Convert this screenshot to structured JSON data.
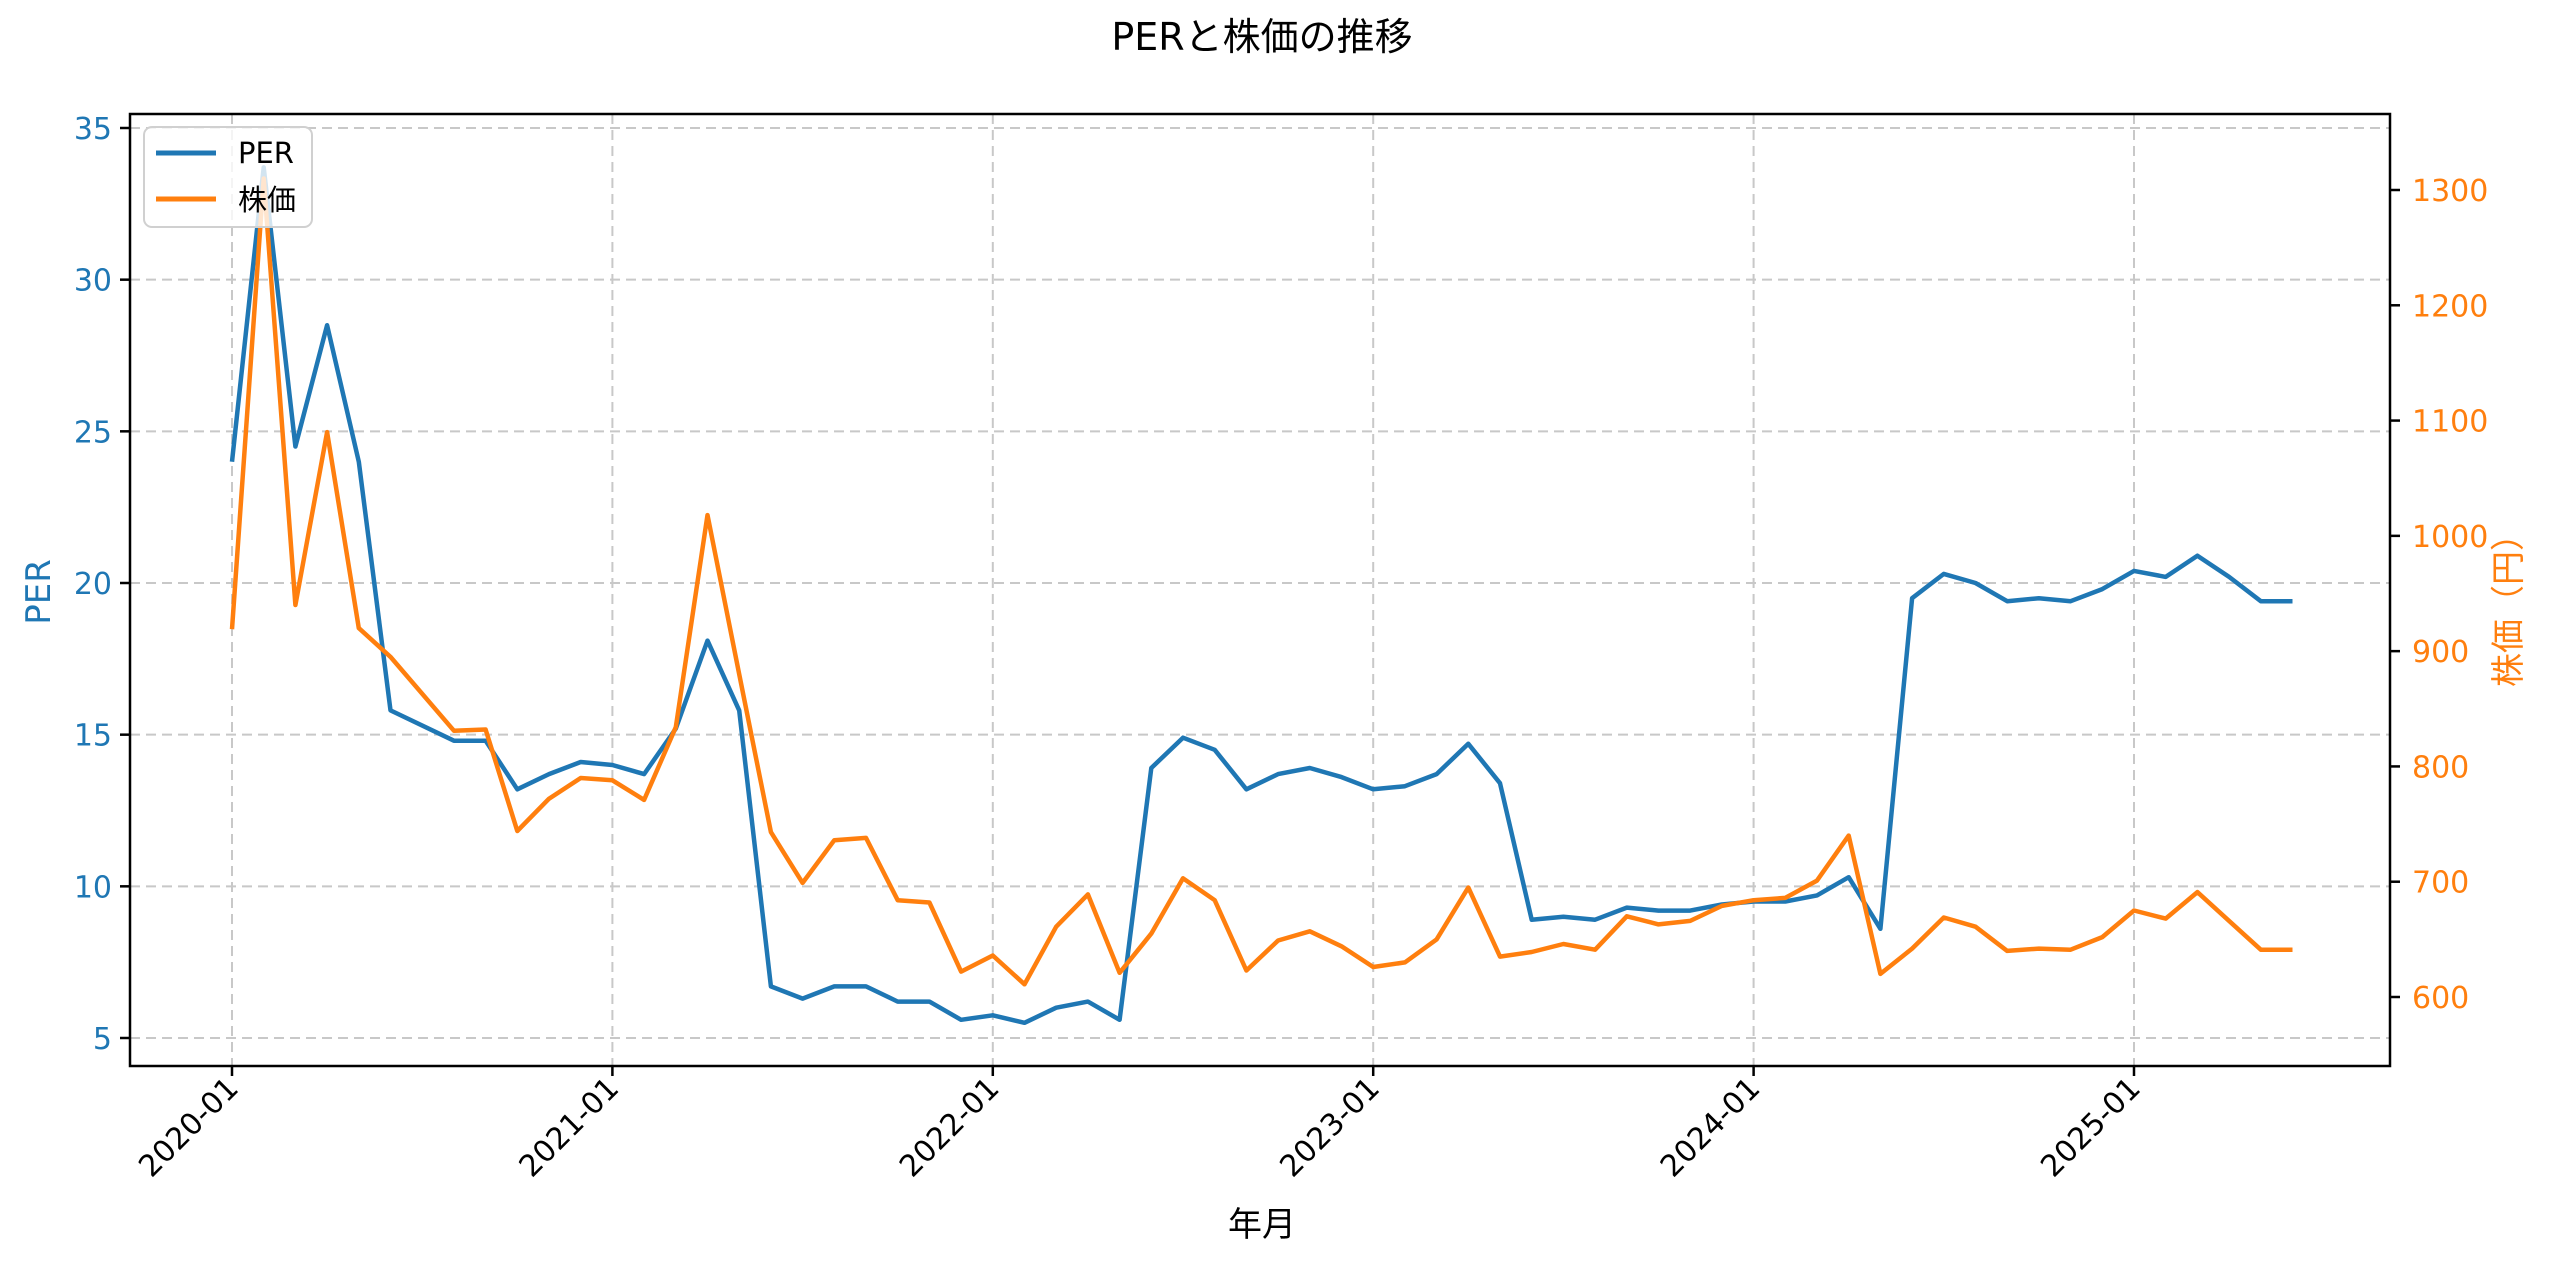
{
  "chart_data": {
    "type": "line",
    "title": "PERと株価の推移",
    "xlabel": "年月",
    "ylabel_left": "PER",
    "ylabel_right": "株価（円）",
    "ylim_left": [
      4.1,
      35.7
    ],
    "ylim_right": [
      540,
      1370
    ],
    "yticks_left": [
      5,
      10,
      15,
      20,
      25,
      30,
      35
    ],
    "yticks_right": [
      600,
      700,
      800,
      900,
      1000,
      1100,
      1200,
      1300
    ],
    "xticks": [
      "2020-01",
      "2021-01",
      "2022-01",
      "2023-01",
      "2024-01",
      "2025-01"
    ],
    "grid": true,
    "legend_position": "upper left",
    "x": [
      "2020-01",
      "2020-02",
      "2020-03",
      "2020-04",
      "2020-05",
      "2020-06",
      "2020-08",
      "2020-09",
      "2020-10",
      "2020-11",
      "2020-12",
      "2021-01",
      "2021-02",
      "2021-03",
      "2021-04",
      "2021-05",
      "2021-06",
      "2021-07",
      "2021-08",
      "2021-09",
      "2021-10",
      "2021-11",
      "2021-12",
      "2022-01",
      "2022-02",
      "2022-03",
      "2022-04",
      "2022-05",
      "2022-06",
      "2022-07",
      "2022-08",
      "2022-09",
      "2022-10",
      "2022-11",
      "2022-12",
      "2023-01",
      "2023-02",
      "2023-03",
      "2023-04",
      "2023-05",
      "2023-06",
      "2023-07",
      "2023-08",
      "2023-09",
      "2023-10",
      "2023-11",
      "2023-12",
      "2024-01",
      "2024-02",
      "2024-03",
      "2024-04",
      "2024-05",
      "2024-06",
      "2024-07",
      "2024-08",
      "2024-09",
      "2024-10",
      "2024-11",
      "2024-12",
      "2025-01",
      "2025-02",
      "2025-03",
      "2025-04",
      "2025-05",
      "2025-06"
    ],
    "series": [
      {
        "name": "PER",
        "axis": "left",
        "color": "#1f77b4",
        "values": [
          24.0,
          33.7,
          24.5,
          28.5,
          24.0,
          15.8,
          14.8,
          14.8,
          13.2,
          13.7,
          14.1,
          14.0,
          13.7,
          15.2,
          18.1,
          15.8,
          6.7,
          6.3,
          6.7,
          6.7,
          6.2,
          6.2,
          5.6,
          5.75,
          5.5,
          6.0,
          6.2,
          5.6,
          13.9,
          14.9,
          14.5,
          13.2,
          13.7,
          13.9,
          13.6,
          13.2,
          13.3,
          13.7,
          14.7,
          13.4,
          8.9,
          9.0,
          8.9,
          9.3,
          9.2,
          9.2,
          9.4,
          9.5,
          9.5,
          9.7,
          10.3,
          8.6,
          19.5,
          20.3,
          20.0,
          19.4,
          19.5,
          19.4,
          19.8,
          20.4,
          20.2,
          20.9,
          20.2,
          19.4,
          19.4
        ]
      },
      {
        "name": "株価",
        "axis": "right",
        "color": "#ff7f0e",
        "values": [
          919,
          1310,
          940,
          1090,
          920,
          895,
          831,
          832,
          744,
          772,
          790,
          788,
          771,
          834,
          1018,
          880,
          743,
          699,
          736,
          738,
          684,
          682,
          622,
          636,
          611,
          661,
          689,
          621,
          655,
          703,
          684,
          623,
          649,
          657,
          644,
          626,
          630,
          650,
          695,
          635,
          639,
          646,
          641,
          670,
          663,
          666,
          679,
          684,
          686,
          701,
          740,
          620,
          642,
          669,
          661,
          640,
          642,
          641,
          652,
          675,
          668,
          691,
          666,
          641,
          641
        ]
      }
    ]
  },
  "legend": {
    "items": [
      {
        "label": "PER",
        "color": "#1f77b4"
      },
      {
        "label": "株価",
        "color": "#ff7f0e"
      }
    ]
  }
}
